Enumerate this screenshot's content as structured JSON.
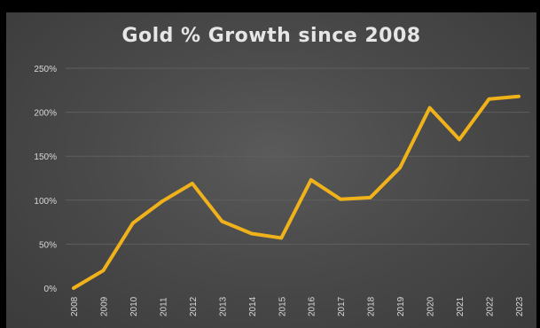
{
  "chart_data": {
    "type": "line",
    "title": "Gold % Growth since 2008",
    "xlabel": "",
    "ylabel": "",
    "categories": [
      "2008",
      "2009",
      "2010",
      "2011",
      "2012",
      "2013",
      "2014",
      "2015",
      "2016",
      "2017",
      "2018",
      "2019",
      "2020",
      "2021",
      "2022",
      "2023"
    ],
    "series": [
      {
        "values": [
          0,
          20,
          74,
          99,
          119,
          76,
          62,
          57,
          123,
          101,
          103,
          137,
          205,
          169,
          215,
          218
        ],
        "color": "#f0b21a"
      }
    ],
    "ylim": [
      0,
      250
    ],
    "yticks": [
      0,
      50,
      100,
      150,
      200,
      250
    ],
    "ytick_labels": [
      "0%",
      "50%",
      "100%",
      "150%",
      "200%",
      "250%"
    ],
    "grid": true,
    "legend": "none",
    "colors": {
      "background": "#4a4a4a",
      "gridline": "#5e5e5e",
      "text": "#d8d8d8"
    }
  }
}
